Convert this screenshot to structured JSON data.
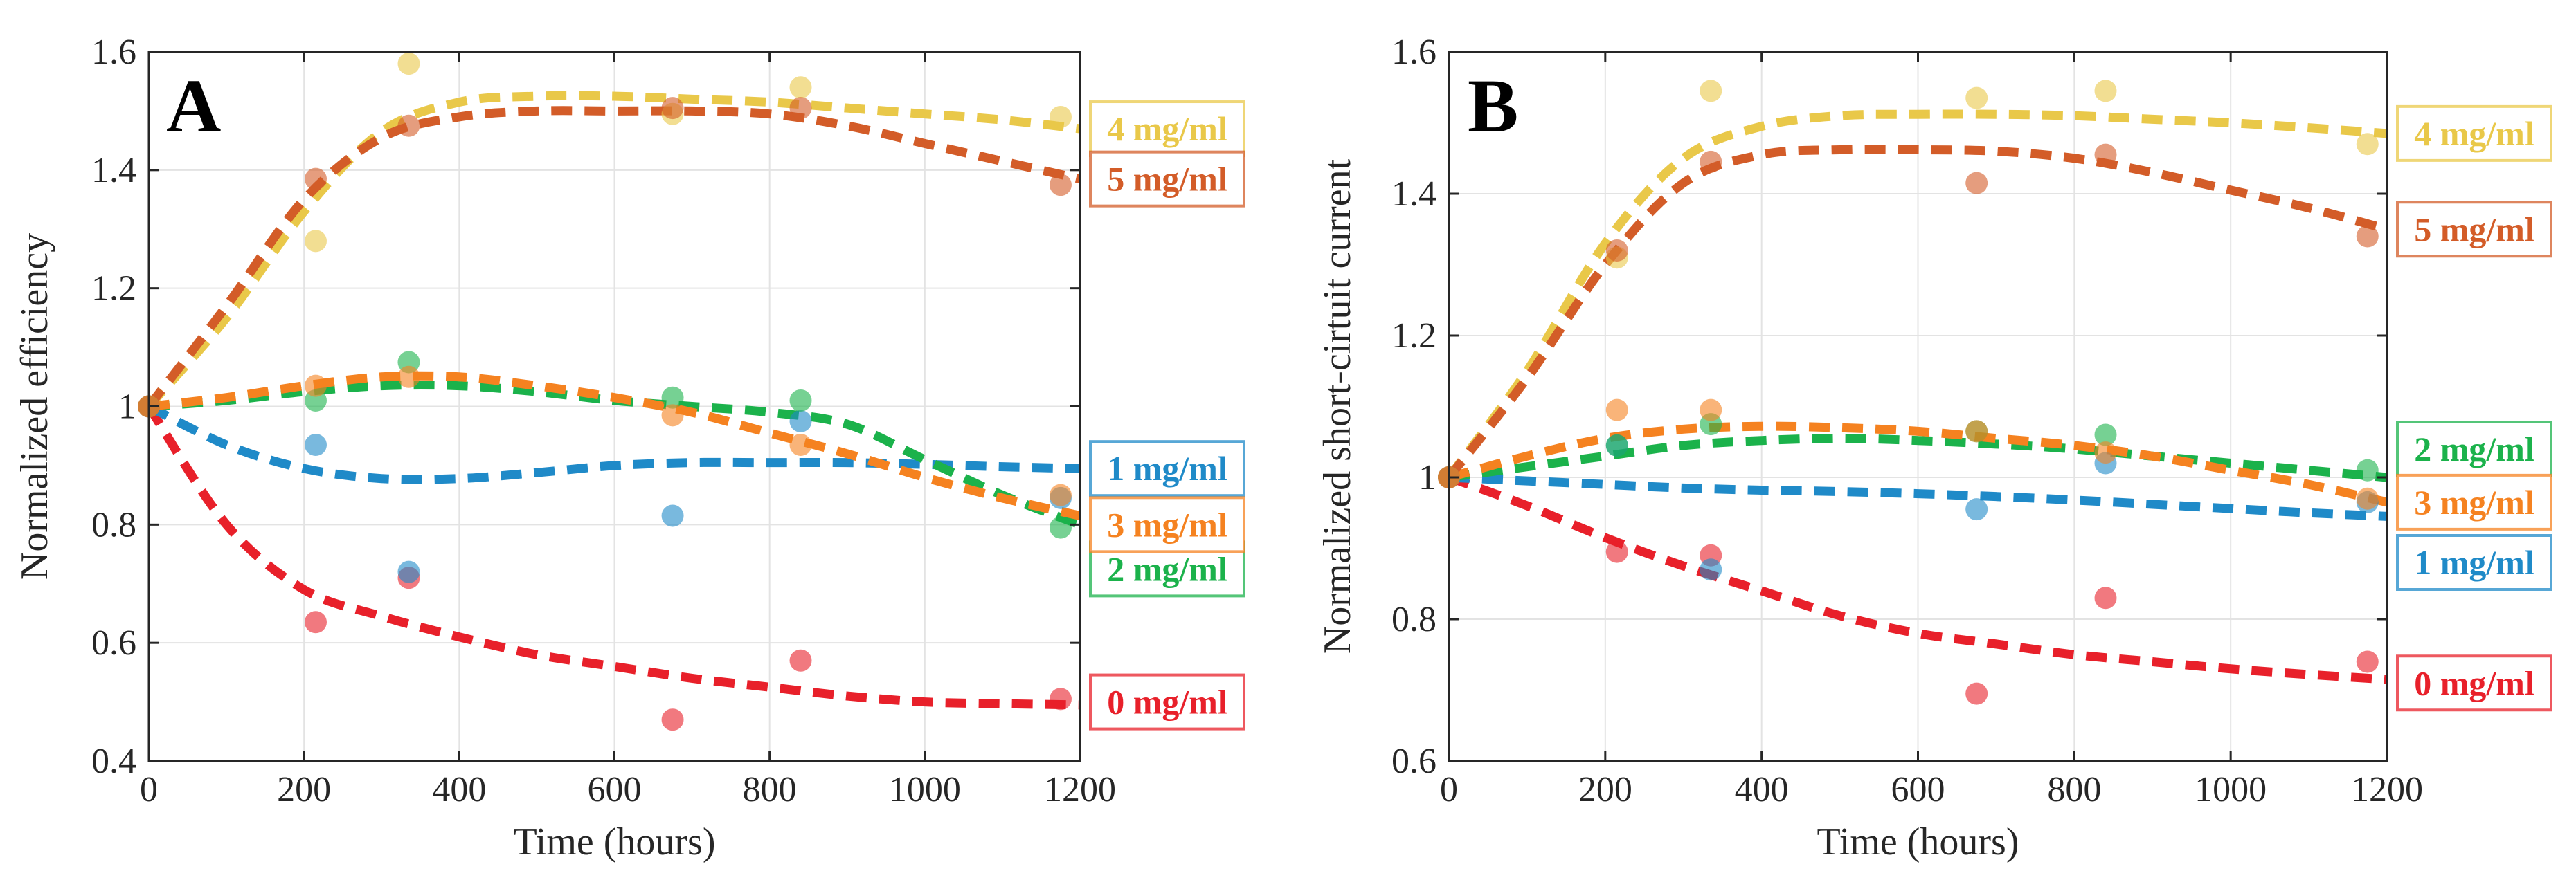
{
  "chart_data": [
    {
      "type": "scatter",
      "panel_label": "A",
      "title": "",
      "xlabel": "Time (hours)",
      "ylabel": "Normalized efficiency",
      "xlim": [
        0,
        1200
      ],
      "ylim": [
        0.4,
        1.6
      ],
      "xticks": [
        0,
        200,
        400,
        600,
        800,
        1000,
        1200
      ],
      "yticks": [
        0.4,
        0.6,
        0.8,
        1,
        1.2,
        1.4,
        1.6
      ],
      "xtick_labels": [
        "0",
        "200",
        "400",
        "600",
        "800",
        "1000",
        "1200"
      ],
      "ytick_labels": [
        "0.4",
        "0.6",
        "0.8",
        "1",
        "1.2",
        "1.4",
        "1.6"
      ],
      "grid": true,
      "legend_position": "right, outside plot",
      "series": [
        {
          "name": "0 mg/ml",
          "label": "0 mg/ml",
          "color": "#E8202A",
          "label_y": 0.5,
          "points": {
            "x": [
              0,
              215,
              335,
              675,
              840,
              1175
            ],
            "y": [
              1.0,
              0.635,
              0.71,
              0.47,
              0.57,
              0.505
            ]
          },
          "fit": {
            "x": [
              0,
              100,
              200,
              300,
              400,
              500,
              600,
              700,
              800,
              900,
              1000,
              1100,
              1200
            ],
            "y": [
              1.0,
              0.8,
              0.69,
              0.645,
              0.61,
              0.58,
              0.56,
              0.54,
              0.525,
              0.51,
              0.5,
              0.497,
              0.495
            ]
          }
        },
        {
          "name": "1 mg/ml",
          "label": "1 mg/ml",
          "color": "#1F8AC8",
          "label_y": 0.895,
          "points": {
            "x": [
              0,
              215,
              335,
              675,
              840,
              1175
            ],
            "y": [
              1.0,
              0.935,
              0.72,
              0.815,
              0.975,
              0.845
            ]
          },
          "fit": {
            "x": [
              0,
              100,
              200,
              300,
              400,
              500,
              600,
              700,
              800,
              900,
              1000,
              1100,
              1200
            ],
            "y": [
              1.0,
              0.935,
              0.895,
              0.878,
              0.878,
              0.888,
              0.9,
              0.905,
              0.905,
              0.905,
              0.902,
              0.898,
              0.895
            ]
          }
        },
        {
          "name": "2 mg/ml",
          "label": "2 mg/ml",
          "color": "#1BB24B",
          "label_y": 0.725,
          "points": {
            "x": [
              0,
              215,
              335,
              675,
              840,
              1175
            ],
            "y": [
              1.0,
              1.01,
              1.075,
              1.015,
              1.01,
              0.795
            ]
          },
          "fit": {
            "x": [
              0,
              100,
              200,
              300,
              400,
              500,
              600,
              700,
              800,
              900,
              1000,
              1100,
              1200
            ],
            "y": [
              1.0,
              1.01,
              1.025,
              1.035,
              1.035,
              1.025,
              1.01,
              1.0,
              0.99,
              0.97,
              0.91,
              0.85,
              0.8
            ]
          }
        },
        {
          "name": "3 mg/ml",
          "label": "3 mg/ml",
          "color": "#F58220",
          "label_y": 0.8,
          "points": {
            "x": [
              0,
              215,
              335,
              675,
              840,
              1175
            ],
            "y": [
              1.0,
              1.035,
              1.05,
              0.985,
              0.935,
              0.85
            ]
          },
          "fit": {
            "x": [
              0,
              100,
              200,
              300,
              400,
              500,
              600,
              700,
              800,
              900,
              1000,
              1100,
              1200
            ],
            "y": [
              1.0,
              1.015,
              1.035,
              1.05,
              1.05,
              1.035,
              1.015,
              0.99,
              0.955,
              0.92,
              0.88,
              0.845,
              0.815
            ]
          }
        },
        {
          "name": "4 mg/ml",
          "label": "4 mg/ml",
          "color": "#E9C849",
          "label_y": 1.47,
          "points": {
            "x": [
              0,
              215,
              335,
              675,
              840,
              1175
            ],
            "y": [
              1.0,
              1.28,
              1.58,
              1.495,
              1.54,
              1.49
            ]
          },
          "fit": {
            "x": [
              0,
              100,
              200,
              300,
              400,
              500,
              600,
              700,
              800,
              900,
              1000,
              1100,
              1200
            ],
            "y": [
              1.0,
              1.15,
              1.33,
              1.465,
              1.515,
              1.525,
              1.525,
              1.52,
              1.515,
              1.505,
              1.495,
              1.485,
              1.47
            ]
          }
        },
        {
          "name": "5 mg/ml",
          "label": "5 mg/ml",
          "color": "#D35C28",
          "label_y": 1.385,
          "points": {
            "x": [
              0,
              215,
              335,
              675,
              840,
              1175
            ],
            "y": [
              1.0,
              1.385,
              1.475,
              1.505,
              1.505,
              1.375
            ]
          },
          "fit": {
            "x": [
              0,
              100,
              200,
              300,
              400,
              500,
              600,
              700,
              800,
              900,
              1000,
              1100,
              1200
            ],
            "y": [
              1.0,
              1.17,
              1.35,
              1.455,
              1.49,
              1.5,
              1.5,
              1.5,
              1.495,
              1.475,
              1.445,
              1.415,
              1.385
            ]
          }
        }
      ]
    },
    {
      "type": "scatter",
      "panel_label": "B",
      "title": "",
      "xlabel": "Time (hours)",
      "ylabel": "Normalized short-cirtuit current",
      "xlim": [
        0,
        1200
      ],
      "ylim": [
        0.6,
        1.6
      ],
      "xticks": [
        0,
        200,
        400,
        600,
        800,
        1000,
        1200
      ],
      "yticks": [
        0.6,
        0.8,
        1,
        1.2,
        1.4,
        1.6
      ],
      "xtick_labels": [
        "0",
        "200",
        "400",
        "600",
        "800",
        "1000",
        "1200"
      ],
      "ytick_labels": [
        "0.6",
        "0.8",
        "1",
        "1.2",
        "1.4",
        "1.6"
      ],
      "grid": true,
      "legend_position": "right, outside plot",
      "series": [
        {
          "name": "0 mg/ml",
          "label": "0 mg/ml",
          "color": "#E8202A",
          "label_y": 0.71,
          "points": {
            "x": [
              0,
              215,
              335,
              675,
              840,
              1175
            ],
            "y": [
              1.0,
              0.895,
              0.89,
              0.695,
              0.83,
              0.74
            ]
          },
          "fit": {
            "x": [
              0,
              100,
              200,
              300,
              400,
              500,
              600,
              700,
              800,
              900,
              1000,
              1100,
              1200
            ],
            "y": [
              1.0,
              0.96,
              0.915,
              0.875,
              0.84,
              0.805,
              0.78,
              0.765,
              0.75,
              0.74,
              0.73,
              0.722,
              0.715
            ]
          }
        },
        {
          "name": "1 mg/ml",
          "label": "1 mg/ml",
          "color": "#1F8AC8",
          "label_y": 0.88,
          "points": {
            "x": [
              0,
              215,
              335,
              675,
              840,
              1175
            ],
            "y": [
              1.0,
              1.045,
              0.87,
              0.955,
              1.02,
              0.965
            ]
          },
          "fit": {
            "x": [
              0,
              100,
              200,
              300,
              400,
              500,
              600,
              700,
              800,
              900,
              1000,
              1100,
              1200
            ],
            "y": [
              1.0,
              0.995,
              0.99,
              0.985,
              0.982,
              0.98,
              0.977,
              0.973,
              0.968,
              0.962,
              0.956,
              0.95,
              0.945
            ]
          }
        },
        {
          "name": "2 mg/ml",
          "label": "2 mg/ml",
          "color": "#1BB24B",
          "label_y": 1.04,
          "points": {
            "x": [
              0,
              215,
              335,
              675,
              840,
              1175
            ],
            "y": [
              1.0,
              1.045,
              1.075,
              1.065,
              1.06,
              1.01
            ]
          },
          "fit": {
            "x": [
              0,
              100,
              200,
              300,
              400,
              500,
              600,
              700,
              800,
              900,
              1000,
              1100,
              1200
            ],
            "y": [
              1.0,
              1.015,
              1.03,
              1.045,
              1.052,
              1.055,
              1.052,
              1.047,
              1.04,
              1.03,
              1.02,
              1.01,
              1.0
            ]
          }
        },
        {
          "name": "3 mg/ml",
          "label": "3 mg/ml",
          "color": "#F58220",
          "label_y": 0.965,
          "points": {
            "x": [
              0,
              215,
              335,
              675,
              840,
              1175
            ],
            "y": [
              1.0,
              1.095,
              1.095,
              1.065,
              1.035,
              0.97
            ]
          },
          "fit": {
            "x": [
              0,
              100,
              200,
              300,
              400,
              500,
              600,
              700,
              800,
              900,
              1000,
              1100,
              1200
            ],
            "y": [
              1.0,
              1.03,
              1.055,
              1.068,
              1.072,
              1.07,
              1.065,
              1.055,
              1.045,
              1.03,
              1.01,
              0.99,
              0.965
            ]
          }
        },
        {
          "name": "4 mg/ml",
          "label": "4 mg/ml",
          "color": "#E9C849",
          "label_y": 1.485,
          "points": {
            "x": [
              0,
              215,
              335,
              675,
              840,
              1175
            ],
            "y": [
              1.0,
              1.31,
              1.545,
              1.535,
              1.545,
              1.47
            ]
          },
          "fit": {
            "x": [
              0,
              100,
              200,
              300,
              400,
              500,
              600,
              700,
              800,
              900,
              1000,
              1100,
              1200
            ],
            "y": [
              1.0,
              1.15,
              1.33,
              1.45,
              1.495,
              1.51,
              1.512,
              1.512,
              1.51,
              1.505,
              1.5,
              1.493,
              1.485
            ]
          }
        },
        {
          "name": "5 mg/ml",
          "label": "5 mg/ml",
          "color": "#D35C28",
          "label_y": 1.35,
          "points": {
            "x": [
              0,
              215,
              335,
              675,
              840,
              1175
            ],
            "y": [
              1.0,
              1.32,
              1.445,
              1.415,
              1.455,
              1.34
            ]
          },
          "fit": {
            "x": [
              0,
              100,
              200,
              300,
              400,
              500,
              600,
              700,
              800,
              900,
              1000,
              1100,
              1200
            ],
            "y": [
              1.0,
              1.14,
              1.3,
              1.415,
              1.455,
              1.462,
              1.462,
              1.46,
              1.45,
              1.43,
              1.405,
              1.38,
              1.35
            ]
          }
        }
      ]
    }
  ]
}
